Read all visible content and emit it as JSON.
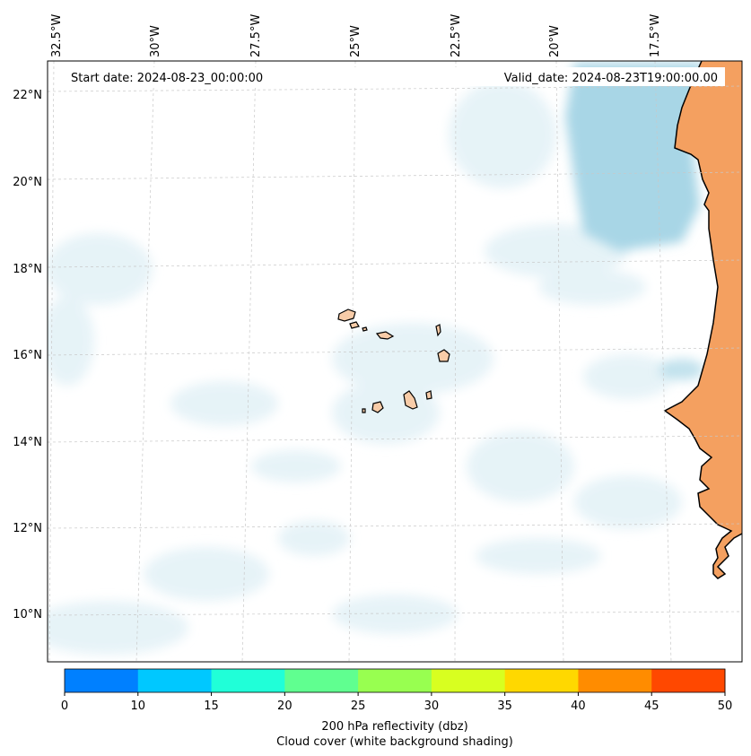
{
  "header": {
    "start_date": "Start date: 2024-08-23_00:00:00",
    "valid_date": "Valid_date: 2024-08-23T19:00:00.00"
  },
  "longitude_labels": [
    "32.5°W",
    "30°W",
    "27.5°W",
    "25°W",
    "22.5°W",
    "20°W",
    "17.5°W"
  ],
  "latitude_labels": [
    "22°N",
    "20°N",
    "18°N",
    "16°N",
    "14°N",
    "12°N",
    "10°N"
  ],
  "colorbar": {
    "ticks": [
      "0",
      "10",
      "15",
      "20",
      "25",
      "30",
      "35",
      "40",
      "45",
      "50"
    ],
    "colors": [
      "#0080ff",
      "#00c8ff",
      "#20ffd8",
      "#60ff90",
      "#98ff50",
      "#d8ff20",
      "#ffd800",
      "#ff8c00",
      "#ff4800"
    ],
    "title": "200 hPa reflectivity (dbz)",
    "subtitle": "Cloud cover (white background shading)"
  },
  "colors": {
    "land": "#f4a060",
    "island": "#f8cca8",
    "cloud_dense": "#a8d6e6",
    "cloud_light": "#e4f2f7",
    "grid": "#c8c8c8",
    "coast": "#000000"
  }
}
